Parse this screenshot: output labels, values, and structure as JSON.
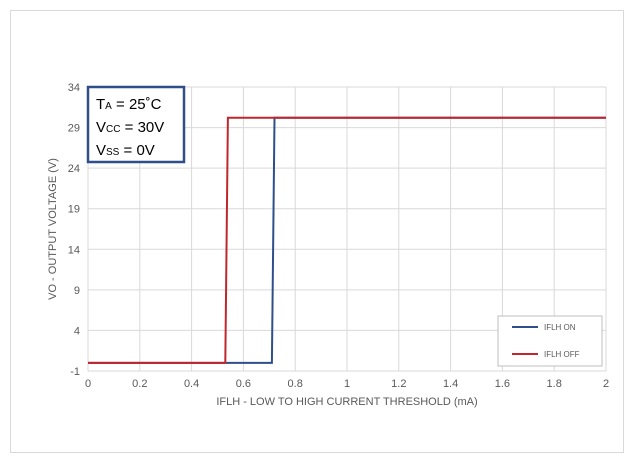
{
  "chart_data": {
    "type": "line",
    "title": "",
    "xlabel": "IFLH - LOW TO HIGH CURRENT THRESHOLD (mA)",
    "ylabel": "VO - OUTPUT VOLTAGE (V)",
    "xlim": [
      0,
      2
    ],
    "ylim": [
      -1,
      34
    ],
    "x_ticks": [
      0,
      0.2,
      0.4,
      0.6,
      0.8,
      1,
      1.2,
      1.4,
      1.6,
      1.8,
      2
    ],
    "x_tick_labels": [
      "0",
      "0.2",
      "0.4",
      "0.6",
      "0.8",
      "1",
      "1.2",
      "1.4",
      "1.6",
      "1.8",
      "2"
    ],
    "y_ticks": [
      -1,
      4,
      9,
      14,
      19,
      24,
      29,
      34
    ],
    "y_tick_labels": [
      "-1",
      "4",
      "9",
      "14",
      "19",
      "24",
      "29",
      "34"
    ],
    "grid": true,
    "legend_position": "bottom-right",
    "series": [
      {
        "name": "IFLH ON",
        "color": "#2e4f8a",
        "x": [
          0,
          0.71,
          0.72,
          2
        ],
        "y": [
          0,
          0,
          30.2,
          30.2
        ]
      },
      {
        "name": "IFLH OFF",
        "color": "#c0272d",
        "x": [
          0,
          0.53,
          0.54,
          2
        ],
        "y": [
          0,
          0,
          30.2,
          30.2
        ]
      }
    ],
    "annotation": {
      "border_color": "#2e4f8a",
      "lines": [
        {
          "main": "T",
          "sub": "A",
          "rest": " = 25˚C"
        },
        {
          "main": "V",
          "sub": "CC",
          "rest": " = 30V"
        },
        {
          "main": "V",
          "sub": "SS",
          "rest": " = 0V"
        }
      ]
    }
  }
}
